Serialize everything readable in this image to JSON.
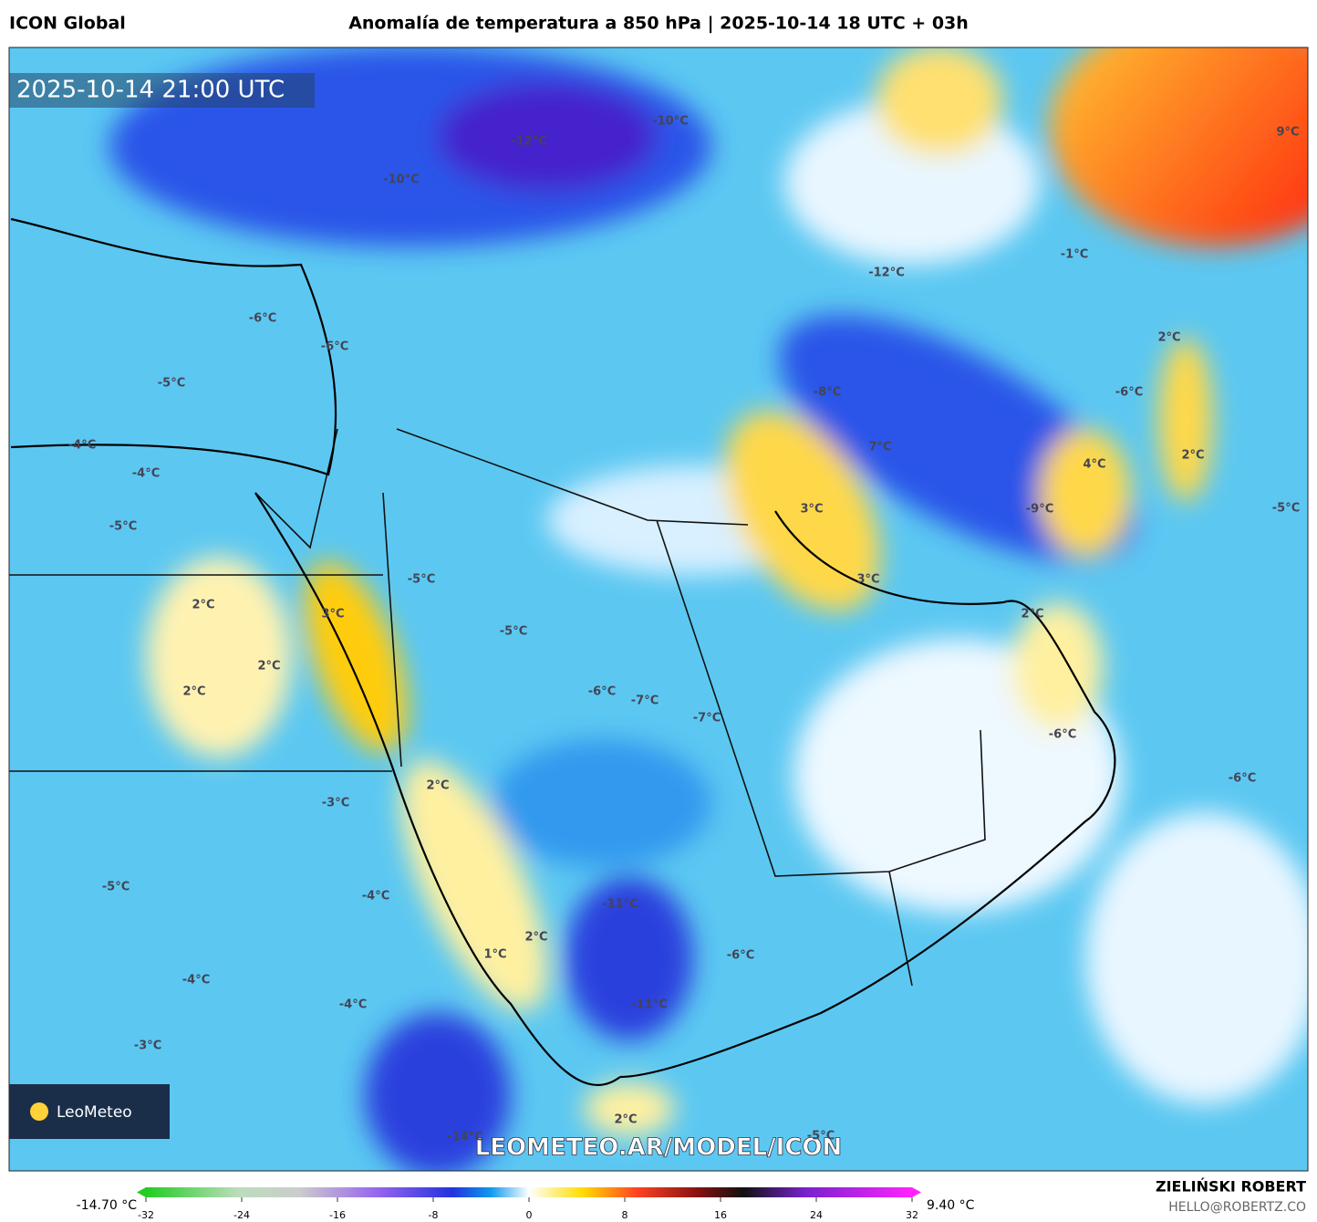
{
  "header": {
    "model": "ICON Global",
    "title": "Anomalía de temperatura a 850 hPa | 2025-10-14 18 UTC + 03h"
  },
  "map": {
    "timestamp": "2025-10-14 21:00 UTC",
    "watermark": "LEOMETEO.AR/MODEL/ICON",
    "logo": "LeoMeteo",
    "labels": [
      "-10°C",
      "-12°C",
      "-10°C",
      "9°C",
      "-12°C",
      "-1°C",
      "-6°C",
      "-6°C",
      "-5°C",
      "-4°C",
      "-4°C",
      "-5°C",
      "-8°C",
      "-6°C",
      "7°C",
      "2°C",
      "4°C",
      "2°C",
      "-9°C",
      "-5°C",
      "3°C",
      "3°C",
      "-5°C",
      "-5°C",
      "2°C",
      "3°C",
      "2°C",
      "2°C",
      "2°C",
      "-6°C",
      "-7°C",
      "-7°C",
      "-6°C",
      "-6°C",
      "2°C",
      "-3°C",
      "-5°C",
      "-4°C",
      "-11°C",
      "2°C",
      "1°C",
      "-6°C",
      "-4°C",
      "-4°C",
      "-11°C",
      "-3°C",
      "2°C",
      "-14°C",
      "-5°C"
    ]
  },
  "colorbar": {
    "min_label": "-14.70 °C",
    "max_label": "9.40 °C",
    "ticks": [
      -32,
      -24,
      -16,
      -8,
      0,
      8,
      16,
      24,
      32
    ]
  },
  "footer": {
    "author": "ZIELIŃSKI ROBERT",
    "email": "HELLO@ROBERTZ.CO"
  }
}
